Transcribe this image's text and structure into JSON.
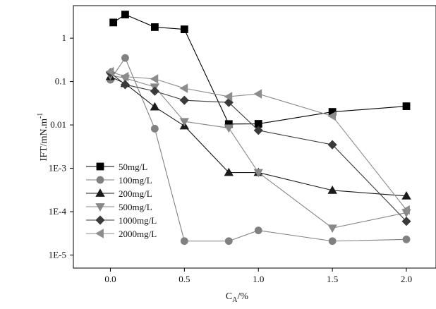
{
  "chart_data": {
    "type": "line",
    "title": "",
    "xlabel": "C",
    "xlabel_sub": "A",
    "xlabel_unit": "/%",
    "ylabel": "IFT/mN.m",
    "ylabel_sup": "-1",
    "x_scale": "linear",
    "y_scale": "log",
    "xlim": [
      -0.25,
      2.2
    ],
    "ylim_log10": [
      -5.3,
      0.75
    ],
    "x_ticks": [
      0.0,
      0.5,
      1.0,
      1.5,
      2.0
    ],
    "x_tick_labels": [
      "0.0",
      "0.5",
      "1.0",
      "1.5",
      "2.0"
    ],
    "y_ticks": [
      1e-05,
      0.0001,
      0.001,
      0.01,
      0.1,
      1
    ],
    "y_tick_labels": [
      "1E-5",
      "1E-4",
      "1E-3",
      "0.01",
      "0.1",
      "1"
    ],
    "grid": false,
    "legend_position": "bottom-left",
    "series": [
      {
        "name": "50mg/L",
        "marker": "square",
        "color": "#000000",
        "x": [
          0.02,
          0.1,
          0.3,
          0.5,
          0.8,
          1.0,
          1.5,
          2.0
        ],
        "y": [
          2.3,
          3.5,
          1.8,
          1.6,
          0.0105,
          0.0106,
          0.02,
          0.027
        ]
      },
      {
        "name": "100mg/L",
        "marker": "circle",
        "color": "#808080",
        "x": [
          0.0,
          0.1,
          0.3,
          0.5,
          0.8,
          1.0,
          1.5,
          2.0
        ],
        "y": [
          0.11,
          0.35,
          0.0082,
          2.1e-05,
          2.1e-05,
          3.7e-05,
          2.1e-05,
          2.3e-05
        ]
      },
      {
        "name": "200mg/L",
        "marker": "triangle-up",
        "color": "#1a1a1a",
        "x": [
          0.0,
          0.1,
          0.3,
          0.5,
          0.8,
          1.0,
          1.5,
          2.0
        ],
        "y": [
          0.13,
          0.09,
          0.026,
          0.0095,
          0.0008,
          0.0008,
          0.00031,
          0.00023
        ]
      },
      {
        "name": "500mg/L",
        "marker": "triangle-down",
        "color": "#888888",
        "x": [
          0.0,
          0.1,
          0.3,
          0.5,
          0.8,
          1.0,
          1.5,
          2.0
        ],
        "y": [
          0.14,
          0.12,
          0.075,
          0.012,
          0.0085,
          0.0008,
          4.2e-05,
          9.5e-05
        ]
      },
      {
        "name": "1000mg/L",
        "marker": "diamond",
        "color": "#3a3a3a",
        "x": [
          0.0,
          0.1,
          0.3,
          0.5,
          0.8,
          1.0,
          1.5,
          2.0
        ],
        "y": [
          0.16,
          0.085,
          0.06,
          0.037,
          0.033,
          0.0075,
          0.0035,
          6e-05
        ]
      },
      {
        "name": "2000mg/L",
        "marker": "triangle-left",
        "color": "#8c8c8c",
        "x": [
          0.0,
          0.1,
          0.3,
          0.5,
          0.8,
          1.0,
          1.5,
          2.0
        ],
        "y": [
          0.17,
          0.13,
          0.115,
          0.07,
          0.045,
          0.052,
          0.016,
          0.00011
        ]
      }
    ]
  }
}
